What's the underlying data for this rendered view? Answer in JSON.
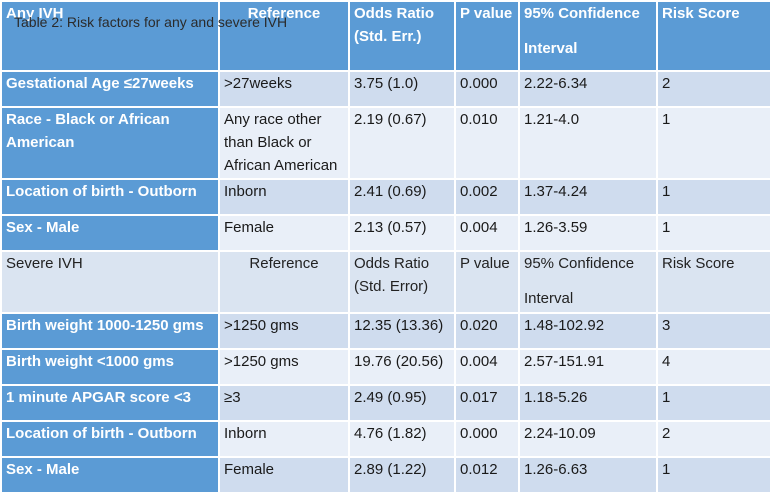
{
  "caption": "Table 2: Risk factors for any and severe IVH",
  "header": {
    "c1": "Any IVH",
    "c2": "Reference",
    "c3a": "Odds Ratio",
    "c3b": "(Std. Err.)",
    "c4": "P value",
    "c5a": "95% Confidence",
    "c5b": "Interval",
    "c6": "Risk Score"
  },
  "any_rows": [
    {
      "factor": "Gestational  Age ≤27weeks",
      "ref": ">27weeks",
      "or": "3.75 (1.0)",
      "p": "0.000",
      "ci": "2.22-6.34",
      "score": "2"
    },
    {
      "factor": "Race - Black or African American",
      "ref": "Any race other than Black or African American",
      "or": "2.19 (0.67)",
      "p": "0.010",
      "ci": "1.21-4.0",
      "score": "1"
    },
    {
      "factor": "Location of birth - Outborn",
      "ref": "Inborn",
      "or": "2.41 (0.69)",
      "p": "0.002",
      "ci": "1.37-4.24",
      "score": "1"
    },
    {
      "factor": "Sex - Male",
      "ref": "Female",
      "or": "2.13 (0.57)",
      "p": "0.004",
      "ci": "1.26-3.59",
      "score": "1"
    }
  ],
  "subheader": {
    "c1": "Severe IVH",
    "c2": "Reference",
    "c3a": "Odds Ratio",
    "c3b": "(Std. Error)",
    "c4": "P value",
    "c5a": "95% Confidence",
    "c5b": "Interval",
    "c6": "Risk Score"
  },
  "severe_rows": [
    {
      "factor": "Birth weight 1000-1250 gms",
      "ref": ">1250 gms",
      "or": "12.35 (13.36)",
      "p": "0.020",
      "ci": "1.48-102.92",
      "score": "3"
    },
    {
      "factor": "Birth weight <1000 gms",
      "ref": ">1250 gms",
      "or": "19.76 (20.56)",
      "p": "0.004",
      "ci": "2.57-151.91",
      "score": "4"
    },
    {
      "factor": "1 minute APGAR score <3",
      "ref": "≥3",
      "or": "2.49 (0.95)",
      "p": "0.017",
      "ci": "1.18-5.26",
      "score": "1"
    },
    {
      "factor": "Location of birth - Outborn",
      "ref": "Inborn",
      "or": "4.76 (1.82)",
      "p": "0.000",
      "ci": "2.24-10.09",
      "score": "2"
    },
    {
      "factor": "Sex - Male",
      "ref": "Female",
      "or": "2.89 (1.22)",
      "p": "0.012",
      "ci": "1.26-6.63",
      "score": "1"
    }
  ]
}
